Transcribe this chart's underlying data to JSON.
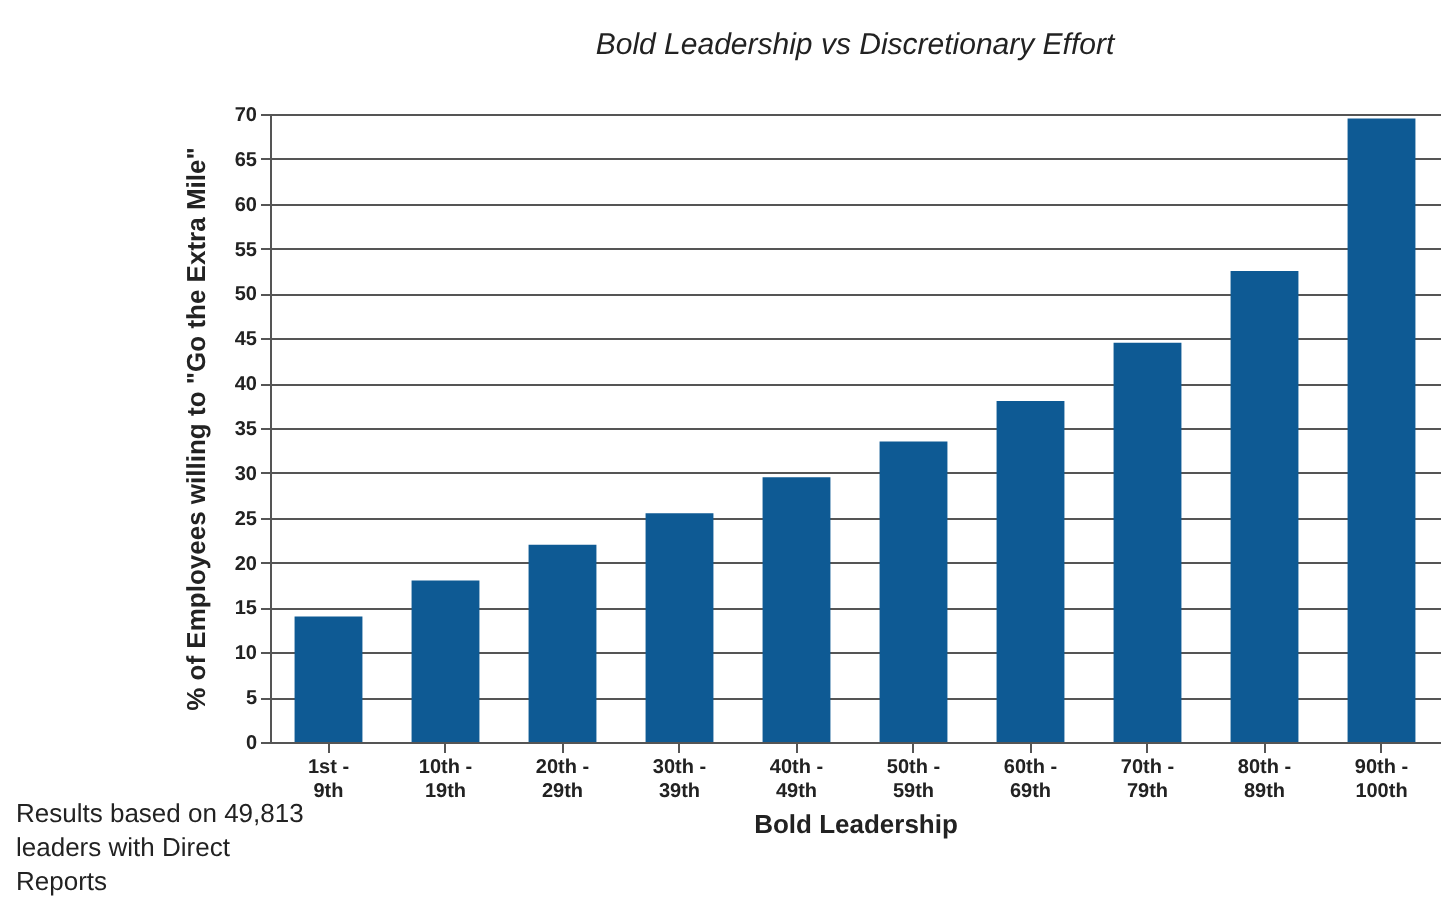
{
  "chart_data": {
    "type": "bar",
    "title": "Bold Leadership vs Discretionary Effort",
    "xlabel": "Bold Leadership",
    "ylabel": "% of Employees willing to \"Go the Extra Mile\"",
    "categories": [
      "1st - 9th",
      "10th - 19th",
      "20th - 29th",
      "30th - 39th",
      "40th - 49th",
      "50th - 59th",
      "60th - 69th",
      "70th - 79th",
      "80th - 89th",
      "90th - 100th"
    ],
    "values": [
      14,
      18,
      22,
      25.5,
      29.5,
      33.5,
      38,
      44.5,
      52.5,
      69.5
    ],
    "color": "#0e5a94",
    "ylim": [
      0,
      70
    ],
    "yticks": [
      0,
      5,
      10,
      15,
      20,
      25,
      30,
      35,
      40,
      45,
      50,
      55,
      60,
      65,
      70
    ],
    "grid": "y",
    "annotations": [
      "Results based on 49,813 leaders with Direct Reports"
    ]
  }
}
